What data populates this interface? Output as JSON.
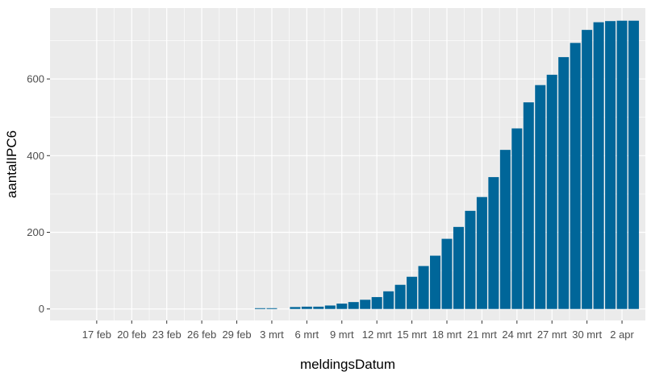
{
  "chart_data": {
    "type": "bar",
    "title": "",
    "xlabel": "meldingsDatum",
    "ylabel": "aantalIPC6",
    "x_tick_labels": [
      "17 feb",
      "20 feb",
      "23 feb",
      "26 feb",
      "29 feb",
      "3 mrt",
      "6 mrt",
      "9 mrt",
      "12 mrt",
      "15 mrt",
      "18 mrt",
      "21 mrt",
      "24 mrt",
      "27 mrt",
      "30 mrt",
      "2 apr"
    ],
    "y_ticks": [
      0,
      200,
      400,
      600
    ],
    "ylim": [
      -30,
      785
    ],
    "grid": true,
    "bar_color": "#006699",
    "panel_color": "#ebebeb",
    "grid_color": "#ffffff",
    "categories": [
      "2020-03-02",
      "2020-03-03",
      "2020-03-05",
      "2020-03-06",
      "2020-03-07",
      "2020-03-08",
      "2020-03-09",
      "2020-03-10",
      "2020-03-11",
      "2020-03-12",
      "2020-03-13",
      "2020-03-14",
      "2020-03-15",
      "2020-03-16",
      "2020-03-17",
      "2020-03-18",
      "2020-03-19",
      "2020-03-20",
      "2020-03-21",
      "2020-03-22",
      "2020-03-23",
      "2020-03-24",
      "2020-03-25",
      "2020-03-26",
      "2020-03-27",
      "2020-03-28",
      "2020-03-29",
      "2020-03-30",
      "2020-03-31",
      "2020-04-01",
      "2020-04-02",
      "2020-04-03"
    ],
    "values": [
      2,
      2,
      5,
      6,
      6,
      9,
      14,
      18,
      24,
      31,
      46,
      63,
      84,
      112,
      139,
      183,
      214,
      256,
      292,
      344,
      415,
      471,
      539,
      584,
      611,
      657,
      694,
      728,
      748,
      751,
      752,
      752
    ]
  }
}
